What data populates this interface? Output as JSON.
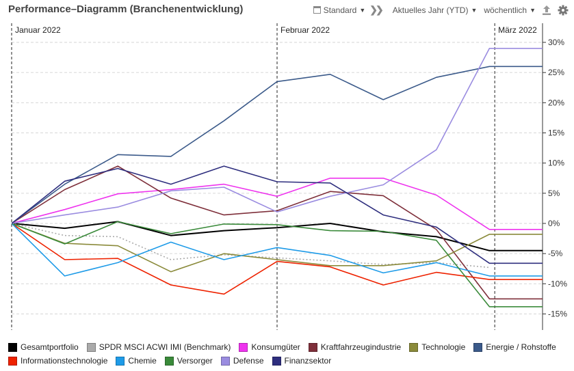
{
  "header": {
    "title": "Performance–Diagramm (Branchenentwicklung)",
    "view_select": "Standard",
    "period_select": "Aktuelles Jahr (YTD)",
    "interval_select": "wöchentlich",
    "icons": {
      "calendar": "calendar-icon",
      "forward": "double-chevron-right-icon",
      "export": "upload-icon",
      "settings": "gear-icon"
    }
  },
  "chart_data": {
    "type": "line",
    "x": [
      0,
      1,
      2,
      3,
      4,
      5,
      6,
      7,
      8,
      9,
      10
    ],
    "x_month_markers": [
      {
        "label": "Januar 2022",
        "at": 0
      },
      {
        "label": "Februar 2022",
        "at": 5
      },
      {
        "label": "März 2022",
        "at": 9.1
      }
    ],
    "y_ticks": [
      "30%",
      "25%",
      "20%",
      "15%",
      "10%",
      "5%",
      "0%",
      "-5%",
      "-10%",
      "-15%"
    ],
    "y_tick_values": [
      30,
      25,
      20,
      15,
      10,
      5,
      0,
      -5,
      -10,
      -15
    ],
    "ylim": [
      -17,
      32
    ],
    "y_axis_position": "right",
    "grid": true,
    "legend_position": "bottom",
    "series": [
      {
        "name": "Gesamtportfolio",
        "color": "#000000",
        "values": [
          0,
          -0.8,
          0.3,
          -2.0,
          -1.2,
          -0.7,
          0,
          -1.4,
          -2.2,
          -4.5,
          -4.5
        ],
        "style": "solid"
      },
      {
        "name": "SPDR MSCI ACWI IMI  (Benchmark)",
        "color": "#aaaaaa",
        "values": [
          0,
          -2.0,
          -2.2,
          -6.0,
          -5.2,
          -5.7,
          -6.2,
          -6.8,
          -6.5,
          -7.3,
          null
        ],
        "style": "dotted"
      },
      {
        "name": "Konsumgüter",
        "color": "#ee33ee",
        "values": [
          0,
          2.3,
          4.9,
          5.6,
          6.5,
          4.5,
          7.5,
          7.5,
          4.7,
          -1.0,
          -1.0
        ],
        "style": "solid"
      },
      {
        "name": "Kraftfahrzeugindustrie",
        "color": "#7e2f3a",
        "values": [
          0,
          5.6,
          9.5,
          4.2,
          1.4,
          2.1,
          5.3,
          4.6,
          -1.0,
          -12.5,
          -12.5
        ],
        "style": "solid"
      },
      {
        "name": "Technologie",
        "color": "#8a8a3a",
        "values": [
          0,
          -3.3,
          -3.7,
          -8.0,
          -5.0,
          -6.0,
          -7.0,
          -7.0,
          -6.2,
          -1.8,
          -1.8
        ],
        "style": "solid"
      },
      {
        "name": "Energie / Rohstoffe",
        "color": "#3b5a8a",
        "values": [
          0,
          6.5,
          11.4,
          11.1,
          17.0,
          23.5,
          24.7,
          20.5,
          24.2,
          26.0,
          26.0
        ],
        "style": "solid"
      },
      {
        "name": "Informationstechnologie",
        "color": "#ee2200",
        "values": [
          0,
          -6.0,
          -5.8,
          -10.2,
          -11.7,
          -6.3,
          -7.2,
          -10.2,
          -8.1,
          -9.3,
          -9.3
        ],
        "style": "solid"
      },
      {
        "name": "Chemie",
        "color": "#1e9be8",
        "values": [
          0,
          -8.7,
          -6.5,
          -3.1,
          -6.0,
          -4.0,
          -5.3,
          -8.2,
          -6.5,
          -8.7,
          -8.7
        ],
        "style": "solid"
      },
      {
        "name": "Versorger",
        "color": "#3a8a3a",
        "values": [
          0,
          -3.4,
          0.3,
          -1.7,
          -0.1,
          -0.2,
          -1.2,
          -1.3,
          -2.8,
          -13.8,
          -13.8
        ],
        "style": "solid"
      },
      {
        "name": "Defense",
        "color": "#9a8ce0",
        "values": [
          0,
          1.4,
          2.7,
          5.4,
          6.0,
          1.9,
          4.5,
          6.4,
          12.2,
          29.0,
          29.0
        ],
        "style": "solid"
      },
      {
        "name": "Finanzsektor",
        "color": "#2e2e7e",
        "values": [
          0,
          7.0,
          9.1,
          6.5,
          9.5,
          6.9,
          6.7,
          1.4,
          -0.6,
          -6.6,
          -6.6
        ],
        "style": "solid"
      }
    ]
  }
}
